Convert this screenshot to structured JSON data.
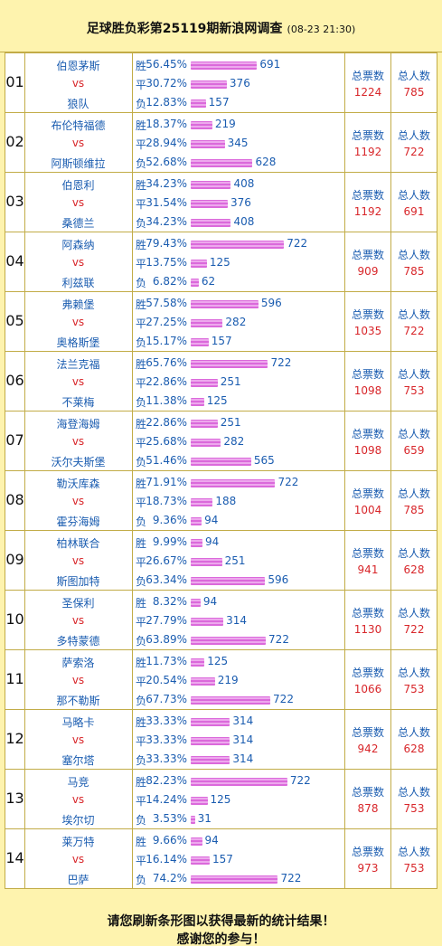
{
  "header": {
    "title": "足球胜负彩第25119期新浪网调查",
    "time": "(08-23 21:30)"
  },
  "matches": [
    {
      "no": "01",
      "home": "伯恩茅斯",
      "vs": "vs",
      "away": "狼队",
      "options": [
        {
          "label": "胜",
          "pct": "56.45%",
          "count": 691
        },
        {
          "label": "平",
          "pct": "30.72%",
          "count": 376
        },
        {
          "label": "负",
          "pct": "12.83%",
          "count": 157
        }
      ],
      "votes_label": "总票数",
      "votes": 1224,
      "people_label": "总人数",
      "people": 785
    },
    {
      "no": "02",
      "home": "布伦特福德",
      "vs": "vs",
      "away": "阿斯顿维拉",
      "options": [
        {
          "label": "胜",
          "pct": "18.37%",
          "count": 219
        },
        {
          "label": "平",
          "pct": "28.94%",
          "count": 345
        },
        {
          "label": "负",
          "pct": "52.68%",
          "count": 628
        }
      ],
      "votes_label": "总票数",
      "votes": 1192,
      "people_label": "总人数",
      "people": 722
    },
    {
      "no": "03",
      "home": "伯恩利",
      "vs": "vs",
      "away": "桑德兰",
      "options": [
        {
          "label": "胜",
          "pct": "34.23%",
          "count": 408
        },
        {
          "label": "平",
          "pct": "31.54%",
          "count": 376
        },
        {
          "label": "负",
          "pct": "34.23%",
          "count": 408
        }
      ],
      "votes_label": "总票数",
      "votes": 1192,
      "people_label": "总人数",
      "people": 691
    },
    {
      "no": "04",
      "home": "阿森纳",
      "vs": "vs",
      "away": "利兹联",
      "options": [
        {
          "label": "胜",
          "pct": "79.43%",
          "count": 722
        },
        {
          "label": "平",
          "pct": "13.75%",
          "count": 125
        },
        {
          "label": "负",
          "pct": "6.82%",
          "count": 62
        }
      ],
      "votes_label": "总票数",
      "votes": 909,
      "people_label": "总人数",
      "people": 785
    },
    {
      "no": "05",
      "home": "弗赖堡",
      "vs": "vs",
      "away": "奥格斯堡",
      "options": [
        {
          "label": "胜",
          "pct": "57.58%",
          "count": 596
        },
        {
          "label": "平",
          "pct": "27.25%",
          "count": 282
        },
        {
          "label": "负",
          "pct": "15.17%",
          "count": 157
        }
      ],
      "votes_label": "总票数",
      "votes": 1035,
      "people_label": "总人数",
      "people": 722
    },
    {
      "no": "06",
      "home": "法兰克福",
      "vs": "vs",
      "away": "不莱梅",
      "options": [
        {
          "label": "胜",
          "pct": "65.76%",
          "count": 722
        },
        {
          "label": "平",
          "pct": "22.86%",
          "count": 251
        },
        {
          "label": "负",
          "pct": "11.38%",
          "count": 125
        }
      ],
      "votes_label": "总票数",
      "votes": 1098,
      "people_label": "总人数",
      "people": 753
    },
    {
      "no": "07",
      "home": "海登海姆",
      "vs": "vs",
      "away": "沃尔夫斯堡",
      "options": [
        {
          "label": "胜",
          "pct": "22.86%",
          "count": 251
        },
        {
          "label": "平",
          "pct": "25.68%",
          "count": 282
        },
        {
          "label": "负",
          "pct": "51.46%",
          "count": 565
        }
      ],
      "votes_label": "总票数",
      "votes": 1098,
      "people_label": "总人数",
      "people": 659
    },
    {
      "no": "08",
      "home": "勒沃库森",
      "vs": "vs",
      "away": "霍芬海姆",
      "options": [
        {
          "label": "胜",
          "pct": "71.91%",
          "count": 722
        },
        {
          "label": "平",
          "pct": "18.73%",
          "count": 188
        },
        {
          "label": "负",
          "pct": "9.36%",
          "count": 94
        }
      ],
      "votes_label": "总票数",
      "votes": 1004,
      "people_label": "总人数",
      "people": 785
    },
    {
      "no": "09",
      "home": "柏林联合",
      "vs": "vs",
      "away": "斯图加特",
      "options": [
        {
          "label": "胜",
          "pct": "9.99%",
          "count": 94
        },
        {
          "label": "平",
          "pct": "26.67%",
          "count": 251
        },
        {
          "label": "负",
          "pct": "63.34%",
          "count": 596
        }
      ],
      "votes_label": "总票数",
      "votes": 941,
      "people_label": "总人数",
      "people": 628
    },
    {
      "no": "10",
      "home": "圣保利",
      "vs": "vs",
      "away": "多特蒙德",
      "options": [
        {
          "label": "胜",
          "pct": "8.32%",
          "count": 94
        },
        {
          "label": "平",
          "pct": "27.79%",
          "count": 314
        },
        {
          "label": "负",
          "pct": "63.89%",
          "count": 722
        }
      ],
      "votes_label": "总票数",
      "votes": 1130,
      "people_label": "总人数",
      "people": 722
    },
    {
      "no": "11",
      "home": "萨索洛",
      "vs": "vs",
      "away": "那不勒斯",
      "options": [
        {
          "label": "胜",
          "pct": "11.73%",
          "count": 125
        },
        {
          "label": "平",
          "pct": "20.54%",
          "count": 219
        },
        {
          "label": "负",
          "pct": "67.73%",
          "count": 722
        }
      ],
      "votes_label": "总票数",
      "votes": 1066,
      "people_label": "总人数",
      "people": 753
    },
    {
      "no": "12",
      "home": "马略卡",
      "vs": "vs",
      "away": "塞尔塔",
      "options": [
        {
          "label": "胜",
          "pct": "33.33%",
          "count": 314
        },
        {
          "label": "平",
          "pct": "33.33%",
          "count": 314
        },
        {
          "label": "负",
          "pct": "33.33%",
          "count": 314
        }
      ],
      "votes_label": "总票数",
      "votes": 942,
      "people_label": "总人数",
      "people": 628
    },
    {
      "no": "13",
      "home": "马竞",
      "vs": "vs",
      "away": "埃尔切",
      "options": [
        {
          "label": "胜",
          "pct": "82.23%",
          "count": 722
        },
        {
          "label": "平",
          "pct": "14.24%",
          "count": 125
        },
        {
          "label": "负",
          "pct": "3.53%",
          "count": 31
        }
      ],
      "votes_label": "总票数",
      "votes": 878,
      "people_label": "总人数",
      "people": 753
    },
    {
      "no": "14",
      "home": "莱万特",
      "vs": "vs",
      "away": "巴萨",
      "options": [
        {
          "label": "胜",
          "pct": "9.66%",
          "count": 94
        },
        {
          "label": "平",
          "pct": "16.14%",
          "count": 157
        },
        {
          "label": "负",
          "pct": "74.2%",
          "count": 722
        }
      ],
      "votes_label": "总票数",
      "votes": 973,
      "people_label": "总人数",
      "people": 753
    }
  ],
  "footer": [
    "请您刷新条形图以获得最新的统计结果！",
    "感谢您的参与！"
  ]
}
